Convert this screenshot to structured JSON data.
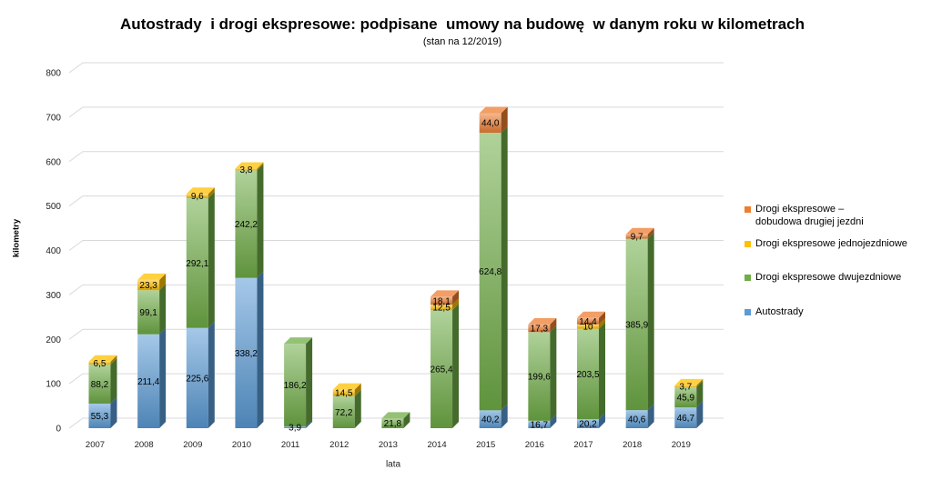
{
  "chart_data": {
    "type": "bar",
    "stacked": true,
    "title": "Autostrady  i drogi ekspresowe: podpisane  umowy na budowę  w danym roku w kilometrach",
    "subtitle": "(stan na 12/2019)",
    "xlabel": "lata",
    "ylabel": "kilometry",
    "ylim": [
      0,
      800
    ],
    "yticks": [
      0,
      100,
      200,
      300,
      400,
      500,
      600,
      700,
      800
    ],
    "grid": true,
    "legend_position": "right",
    "categories": [
      "2007",
      "2008",
      "2009",
      "2010",
      "2011",
      "2012",
      "2013",
      "2014",
      "2015",
      "2016",
      "2017",
      "2018",
      "2019"
    ],
    "series": [
      {
        "name": "Autostrady",
        "color": "#5b9bd5",
        "values": [
          55.3,
          211.4,
          225.6,
          338.2,
          3.9,
          null,
          null,
          null,
          40.2,
          16.7,
          20.2,
          40.6,
          46.7
        ],
        "labels": [
          "55,3",
          "211,4",
          "225,6",
          "338,2",
          "3,9",
          null,
          null,
          null,
          "40,2",
          "16,7",
          "20,2",
          "40,6",
          "46,7"
        ]
      },
      {
        "name": "Drogi ekspresowe dwujezdniowe",
        "color": "#70ad47",
        "values": [
          88.2,
          99.1,
          292.1,
          242.2,
          186.2,
          72.2,
          21.8,
          265.4,
          624.8,
          199.6,
          203.5,
          385.9,
          45.9
        ],
        "labels": [
          "88,2",
          "99,1",
          "292,1",
          "242,2",
          "186,2",
          "72,2",
          "21,8",
          "265,4",
          "624,8",
          "199,6",
          "203,5",
          "385,9",
          "45,9"
        ]
      },
      {
        "name": "Drogi ekspresowe jednojezdniowe",
        "color": "#ffc000",
        "values": [
          6.5,
          23.3,
          9.6,
          3.8,
          null,
          14.5,
          null,
          12.5,
          null,
          null,
          10,
          null,
          3.7
        ],
        "labels": [
          "6,5",
          "23,3",
          "9,6",
          "3,8",
          null,
          "14,5",
          null,
          "12,5",
          null,
          null,
          "10",
          null,
          "3,7"
        ]
      },
      {
        "name": "Drogi ekspresowe – dobudowa drugiej jezdni",
        "color": "#ed7d31",
        "values": [
          null,
          null,
          null,
          null,
          null,
          null,
          null,
          18.1,
          44.0,
          17.3,
          14.4,
          9.7,
          null
        ],
        "labels": [
          null,
          null,
          null,
          null,
          null,
          null,
          null,
          "18,1",
          "44,0",
          "17,3",
          "14,4",
          "9,7",
          null
        ]
      }
    ]
  }
}
